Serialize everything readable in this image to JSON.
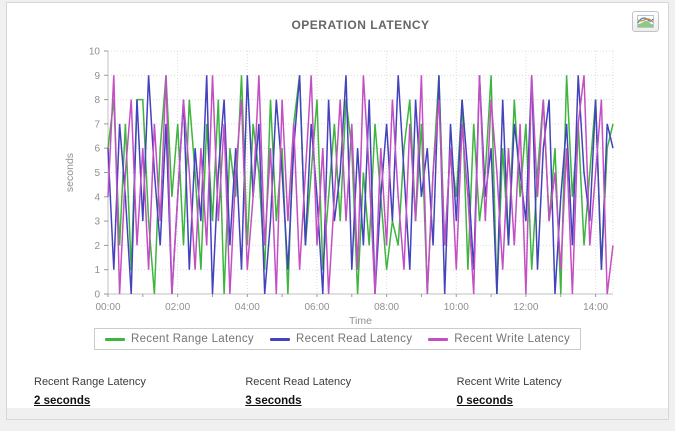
{
  "toolbar": {
    "chart_button_icon": "line-chart-icon"
  },
  "chart_data": {
    "type": "line",
    "title": "OPERATION LATENCY",
    "xlabel": "Time",
    "ylabel": "seconds",
    "ylim": [
      0,
      10
    ],
    "y_ticks": [
      0,
      1,
      2,
      3,
      4,
      5,
      6,
      7,
      8,
      9,
      10
    ],
    "x_tick_labels": [
      "00:00",
      "02:00",
      "04:00",
      "06:00",
      "08:00",
      "10:00",
      "12:00",
      "14:00"
    ],
    "x_tick_hours": [
      0,
      2,
      4,
      6,
      8,
      10,
      12,
      14
    ],
    "x_range_hours": [
      0,
      14.5
    ],
    "minor_tick_every_hours": 1,
    "grid": true,
    "grid_style": "dotted",
    "legend_position": "bottom",
    "series": [
      {
        "name": "Recent Range Latency",
        "color": "#3eb53e",
        "values": [
          6,
          8,
          2,
          7,
          1,
          8,
          8,
          3,
          0,
          6,
          9,
          4,
          7,
          2,
          8,
          5,
          1,
          7,
          3,
          8,
          0,
          6,
          4,
          9,
          2,
          7,
          5,
          1,
          8,
          3,
          6,
          0,
          7,
          9,
          2,
          5,
          8,
          1,
          4,
          7,
          3,
          8,
          6,
          0,
          5,
          2,
          7,
          4,
          1,
          3,
          2,
          6,
          8,
          3,
          7,
          0,
          5,
          9,
          2,
          6,
          4,
          8,
          1,
          7,
          3,
          5,
          9,
          0,
          6,
          2,
          8,
          4,
          7,
          1,
          5,
          8,
          3,
          6,
          0,
          9,
          4,
          7,
          2,
          5,
          8,
          1,
          6,
          7
        ]
      },
      {
        "name": "Recent Read Latency",
        "color": "#4343bd",
        "values": [
          6,
          1,
          7,
          4,
          0,
          8,
          3,
          9,
          5,
          2,
          7,
          0,
          4,
          8,
          1,
          6,
          3,
          9,
          0,
          5,
          8,
          2,
          6,
          1,
          9,
          4,
          7,
          0,
          3,
          8,
          5,
          1,
          6,
          9,
          2,
          7,
          4,
          0,
          8,
          3,
          5,
          9,
          1,
          6,
          2,
          8,
          0,
          4,
          7,
          3,
          9,
          5,
          1,
          8,
          4,
          6,
          2,
          9,
          0,
          7,
          3,
          8,
          5,
          1,
          9,
          4,
          6,
          0,
          8,
          2,
          7,
          5,
          3,
          9,
          1,
          6,
          8,
          0,
          4,
          7,
          2,
          9,
          5,
          3,
          8,
          1,
          7,
          6
        ]
      },
      {
        "name": "Recent Write Latency",
        "color": "#c44fc4",
        "values": [
          4,
          9,
          0,
          5,
          8,
          2,
          6,
          1,
          7,
          3,
          9,
          0,
          4,
          8,
          5,
          1,
          6,
          2,
          9,
          3,
          7,
          0,
          5,
          8,
          1,
          4,
          9,
          2,
          6,
          0,
          8,
          3,
          7,
          1,
          5,
          9,
          2,
          6,
          0,
          4,
          8,
          3,
          7,
          1,
          9,
          5,
          0,
          6,
          2,
          8,
          4,
          1,
          7,
          3,
          9,
          0,
          5,
          8,
          2,
          6,
          1,
          7,
          4,
          0,
          9,
          3,
          8,
          5,
          1,
          6,
          2,
          7,
          0,
          9,
          4,
          8,
          3,
          5,
          1,
          6,
          0,
          7,
          9,
          2,
          5,
          8,
          0,
          2
        ]
      }
    ],
    "colors": {
      "grid": "#dcdcdc",
      "axis": "#c0c0c0",
      "tick": "#9a9a9a",
      "tick_label": "#8f8f8f",
      "axis_label": "#8f8f8f"
    }
  },
  "stats": {
    "items": [
      {
        "label": "Recent Range Latency",
        "value": "2 seconds"
      },
      {
        "label": "Recent Read Latency",
        "value": "3 seconds"
      },
      {
        "label": "Recent Write Latency",
        "value": "0 seconds"
      }
    ]
  }
}
